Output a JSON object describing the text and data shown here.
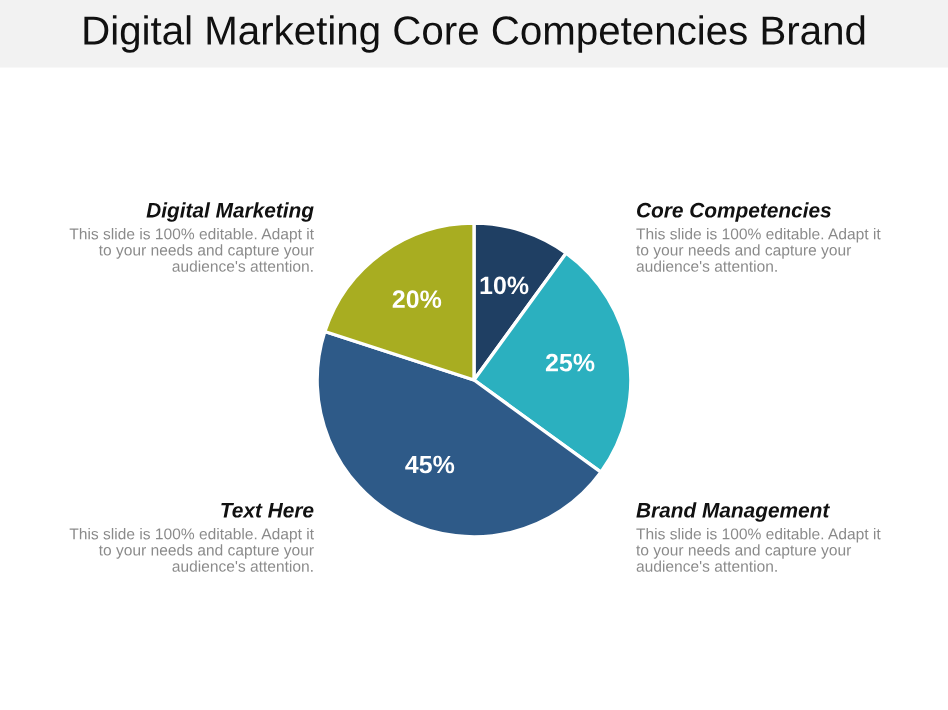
{
  "chart_data": {
    "type": "pie",
    "title": "Digital Marketing Core Competencies Brand",
    "categories": [
      null,
      null,
      null,
      null
    ],
    "values": [
      10,
      25,
      45,
      20
    ],
    "colors": [
      "#1f3f63",
      "#2bb0bf",
      "#2e5a88",
      "#a8ad21"
    ],
    "value_labels": [
      "10%",
      "25%",
      "45%",
      "20%"
    ],
    "annotations": [
      "Core Competencies",
      "This slide is 100% editable. Adapt it\nto your needs and capture your\naudience's attention.",
      "Brand Management",
      "This slide is 100% editable. Adapt it\nto your needs and capture your\naudience's attention.",
      "Text Here",
      "This slide is 100% editable. Adapt it\nto your needs and capture your\naudience's attention.",
      "Digital Marketing",
      "This slide is 100% editable. Adapt it\nto your needs and capture your\naudience's attention."
    ],
    "legend": false
  }
}
